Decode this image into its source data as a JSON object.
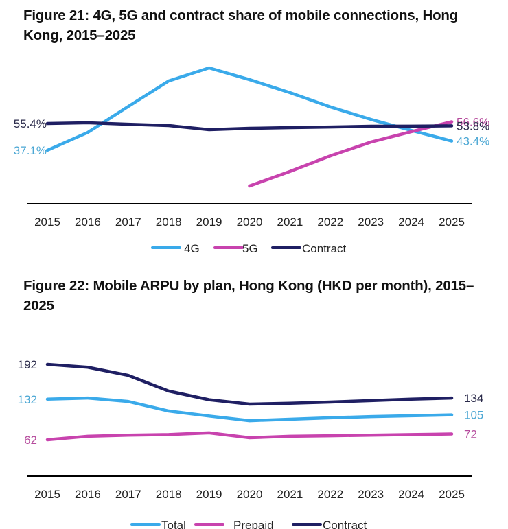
{
  "colors": {
    "light_blue": "#3aaaea",
    "magenta": "#c843ae",
    "navy": "#1f1f63",
    "axis": "#000000",
    "label_light_blue": "#4ba7d4",
    "label_magenta": "#b54a9c",
    "label_navy": "#2a2a4a"
  },
  "chart_data": [
    {
      "type": "line",
      "title": "Figure 21: 4G, 5G and contract share of mobile connections, Hong Kong, 2015–2025",
      "xlabel": "",
      "ylabel": "",
      "x": [
        "2015",
        "2016",
        "2017",
        "2018",
        "2019",
        "2020",
        "2021",
        "2022",
        "2023",
        "2024",
        "2025"
      ],
      "ylim": [
        0,
        100
      ],
      "grid": false,
      "legend_position": "bottom",
      "series": [
        {
          "name": "4G",
          "color": "#3aaaea",
          "values": [
            37.1,
            49.3,
            67.0,
            84.5,
            93.4,
            85.4,
            76.5,
            66.7,
            58.2,
            50.7,
            43.4
          ],
          "start_label": "37.1%",
          "end_label": "43.4%"
        },
        {
          "name": "5G",
          "color": "#c843ae",
          "values": [
            null,
            null,
            null,
            null,
            null,
            12.7,
            22.6,
            33.3,
            42.7,
            49.8,
            56.6
          ],
          "start_label": "",
          "end_label": "56.6%"
        },
        {
          "name": "Contract",
          "color": "#1f1f63",
          "values": [
            55.4,
            55.9,
            54.9,
            54.0,
            51.2,
            52.1,
            52.6,
            53.0,
            53.5,
            53.6,
            53.8
          ],
          "start_label": "55.4%",
          "end_label": "53.8%"
        }
      ]
    },
    {
      "type": "line",
      "title": "Figure 22: Mobile ARPU by plan, Hong Kong (HKD per month), 2015–2025",
      "xlabel": "",
      "ylabel": "",
      "x": [
        "2015",
        "2016",
        "2017",
        "2018",
        "2019",
        "2020",
        "2021",
        "2022",
        "2023",
        "2024",
        "2025"
      ],
      "ylim": [
        0,
        230
      ],
      "grid": false,
      "legend_position": "bottom",
      "series": [
        {
          "name": "Total",
          "color": "#3aaaea",
          "values": [
            132,
            134,
            128,
            111.6,
            103,
            95,
            97.5,
            100,
            102,
            103.5,
            105
          ],
          "start_label": "132",
          "end_label": "105"
        },
        {
          "name": "Prepaid",
          "color": "#c843ae",
          "values": [
            62,
            68,
            70,
            71,
            74,
            65.5,
            68,
            69,
            70,
            71,
            72
          ],
          "start_label": "62",
          "end_label": "72"
        },
        {
          "name": "Contract",
          "color": "#1f1f63",
          "values": [
            192,
            187,
            173,
            146,
            131,
            123.5,
            125,
            127,
            129.5,
            132,
            134
          ],
          "start_label": "192",
          "end_label": "134"
        }
      ]
    }
  ]
}
